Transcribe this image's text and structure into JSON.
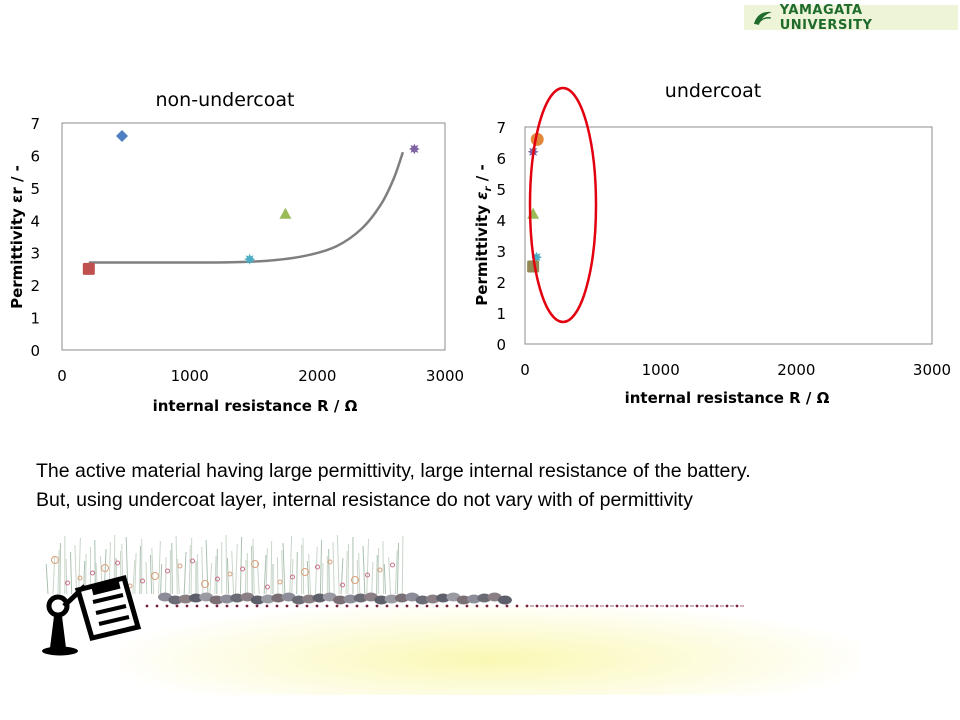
{
  "header": {
    "logo_text": "YAMAGATA UNIVERSITY",
    "logo_icon": "yamagata-leaf-icon",
    "logo_color": "#1e6b2c"
  },
  "chart_data": [
    {
      "type": "scatter",
      "title": "non-undercoat",
      "xlabel": "internal resistance R / Ω",
      "ylabel": "Permittivity εr / -",
      "xlim": [
        0,
        3000
      ],
      "ylim": [
        0,
        7
      ],
      "xticks": [
        "0",
        "1000",
        "2000",
        "3000"
      ],
      "yticks": [
        "0",
        "1",
        "2",
        "3",
        "4",
        "5",
        "6",
        "7"
      ],
      "grid": false,
      "legend": "none",
      "series": [
        {
          "marker": "diamond",
          "color": "#4f7fc3",
          "points": [
            [
              470,
              6.6
            ]
          ]
        },
        {
          "marker": "square",
          "color": "#c0504d",
          "points": [
            [
              210,
              2.5
            ]
          ]
        },
        {
          "marker": "triangle",
          "color": "#9bbb59",
          "points": [
            [
              1750,
              4.2
            ]
          ]
        },
        {
          "marker": "star",
          "color": "#4bacc6",
          "points": [
            [
              1470,
              2.8
            ]
          ]
        },
        {
          "marker": "star",
          "color": "#8064a2",
          "points": [
            [
              2760,
              6.2
            ]
          ]
        }
      ],
      "trendline": {
        "color": "#7f7f7f",
        "points": [
          [
            210,
            2.7
          ],
          [
            1200,
            2.7
          ],
          [
            1600,
            2.75
          ],
          [
            1900,
            2.9
          ],
          [
            2150,
            3.2
          ],
          [
            2350,
            3.75
          ],
          [
            2500,
            4.5
          ],
          [
            2600,
            5.3
          ],
          [
            2670,
            6.1
          ]
        ]
      }
    },
    {
      "type": "scatter",
      "title": "undercoat",
      "xlabel": "internal resistance R / Ω",
      "ylabel_main": "Permittivity",
      "ylabel_symbol": "ε",
      "ylabel_sub": "r",
      "ylabel_tail": " / -",
      "xlim": [
        0,
        3000
      ],
      "ylim": [
        0,
        7
      ],
      "xticks": [
        "0",
        "1000",
        "2000",
        "3000"
      ],
      "yticks": [
        "0",
        "1",
        "2",
        "3",
        "4",
        "5",
        "6",
        "7"
      ],
      "grid": false,
      "legend": "none",
      "series": [
        {
          "marker": "circle",
          "color": "#e2883c",
          "points": [
            [
              90,
              6.6
            ]
          ]
        },
        {
          "marker": "star",
          "color": "#8064a2",
          "points": [
            [
              60,
              6.2
            ]
          ]
        },
        {
          "marker": "triangle",
          "color": "#9bbb59",
          "points": [
            [
              60,
              4.2
            ]
          ]
        },
        {
          "marker": "star",
          "color": "#4bacc6",
          "points": [
            [
              85,
              2.8
            ]
          ]
        },
        {
          "marker": "square",
          "color": "#938953",
          "points": [
            [
              60,
              2.5
            ]
          ]
        }
      ],
      "annotation": {
        "shape": "ellipse",
        "color": "#e3000f"
      }
    }
  ],
  "captions": {
    "line1": "The active material having large permittivity, large internal resistance of the battery.",
    "line2": "But, using undercoat layer, internal resistance do not vary with of permittivity"
  },
  "decoration": {
    "icon": "presenter-clipboard-icon",
    "stones_color": "#6b6b75",
    "dot_line_color": "#7a2040"
  }
}
